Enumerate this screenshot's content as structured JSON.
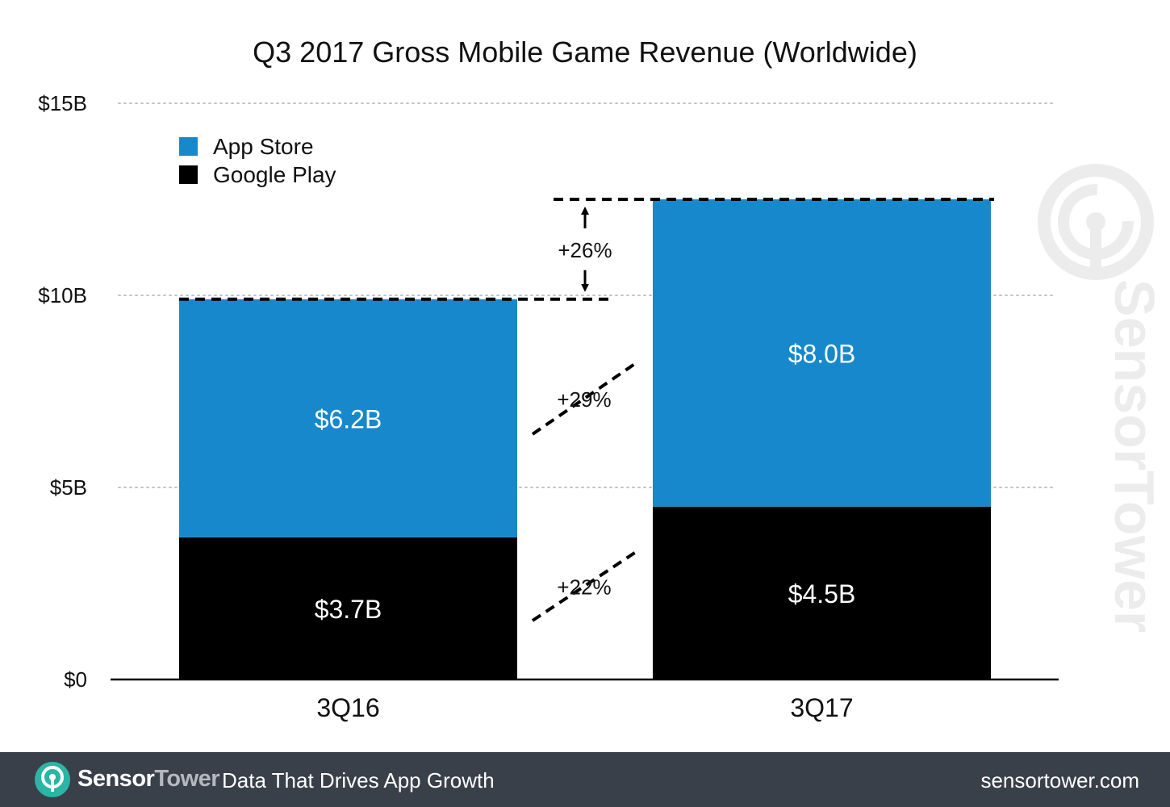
{
  "chart_data": {
    "type": "bar",
    "stacked": true,
    "title": "Q3 2017 Gross Mobile Game Revenue (Worldwide)",
    "categories": [
      "3Q16",
      "3Q17"
    ],
    "series": [
      {
        "name": "Google Play",
        "values": [
          3.7,
          4.5
        ],
        "labels": [
          "$3.7B",
          "$4.5B"
        ],
        "color": "#000000"
      },
      {
        "name": "App Store",
        "values": [
          6.2,
          8.0
        ],
        "labels": [
          "$6.2B",
          "$8.0B"
        ],
        "color": "#1788cb"
      }
    ],
    "legend": {
      "placement": "top-left",
      "entries": [
        "App Store",
        "Google Play"
      ]
    },
    "ylim": [
      0,
      15
    ],
    "yticks": [
      0,
      5,
      10,
      15
    ],
    "ytick_labels": [
      "$0",
      "$5B",
      "$10B",
      "$15B"
    ],
    "grid": "dotted",
    "annotations": [
      {
        "text": "+26%",
        "kind": "total-growth",
        "from": 9.9,
        "to": 12.5
      },
      {
        "text": "+29%",
        "kind": "app-store-growth"
      },
      {
        "text": "+22%",
        "kind": "google-play-growth"
      }
    ],
    "watermark": "SensorTower"
  },
  "footer": {
    "brand_part1": "Sensor",
    "brand_part2": "Tower",
    "tagline": "Data That Drives App Growth",
    "site": "sensortower.com"
  },
  "colors": {
    "app_store": "#1788cb",
    "google_play": "#000000",
    "footer_bg": "#39404a"
  }
}
